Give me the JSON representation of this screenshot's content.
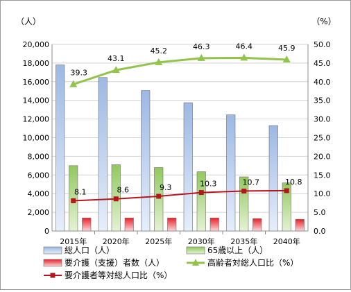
{
  "chart_data": {
    "type": "bar",
    "y_left_label": "（人）",
    "y_right_label": "（%）",
    "ylim_left": [
      0,
      20000
    ],
    "ylim_right": [
      0,
      50
    ],
    "y_left_ticks": [
      "0",
      "2,000",
      "4,000",
      "6,000",
      "8,000",
      "10,000",
      "12,000",
      "14,000",
      "16,000",
      "18,000",
      "20,000"
    ],
    "y_right_ticks": [
      "0.0",
      "5.0",
      "10.0",
      "15.0",
      "20.0",
      "25.0",
      "30.0",
      "35.0",
      "40.0",
      "45.0",
      "50.0"
    ],
    "categories": [
      "2015年",
      "2020年",
      "2025年",
      "2030年",
      "2035年",
      "2040年"
    ],
    "bar_series": [
      {
        "name": "総人口（人）",
        "values": [
          17800,
          16450,
          15050,
          13750,
          12450,
          11300
        ],
        "color_top": "#9db8e4",
        "color_bottom": "#e6eefa"
      },
      {
        "name": "65歳以上（人）",
        "values": [
          7000,
          7100,
          6800,
          6350,
          5800,
          5150
        ],
        "color_top": "#93c860",
        "color_bottom": "#e4f2d4"
      },
      {
        "name": "要介護（支援）者数（人）",
        "values": [
          1400,
          1400,
          1400,
          1400,
          1330,
          1250
        ],
        "color_top": "#e8202a",
        "color_bottom": "#f9d7d8"
      }
    ],
    "line_series": [
      {
        "name": "高齢者対総人口比（%）",
        "values": [
          39.3,
          43.1,
          45.2,
          46.3,
          46.4,
          45.9
        ],
        "labels": [
          "39.3",
          "43.1",
          "45.2",
          "46.3",
          "46.4",
          "45.9"
        ],
        "color": "#92c44c",
        "marker": "triangle"
      },
      {
        "name": "要介護者等対総人口比（%）",
        "values": [
          8.1,
          8.6,
          9.3,
          10.3,
          10.7,
          10.8
        ],
        "labels": [
          "8.1",
          "8.6",
          "9.3",
          "10.3",
          "10.7",
          "10.8"
        ],
        "color": "#b2171e",
        "marker": "square"
      }
    ],
    "grid": true,
    "legend_position": "bottom"
  }
}
